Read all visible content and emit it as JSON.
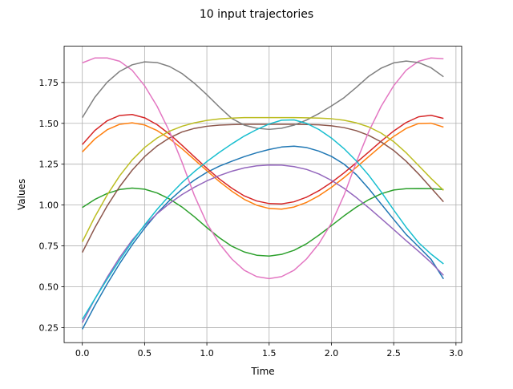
{
  "chart_data": {
    "type": "line",
    "title": "10 input trajectories",
    "xlabel": "Time",
    "ylabel": "Values",
    "xlim": [
      -0.146,
      3.046
    ],
    "ylim": [
      0.158,
      1.972
    ],
    "xticks": [
      0.0,
      0.5,
      1.0,
      1.5,
      2.0,
      2.5,
      3.0
    ],
    "xtick_labels": [
      "0.0",
      "0.5",
      "1.0",
      "1.5",
      "2.0",
      "2.5",
      "3.0"
    ],
    "yticks": [
      0.25,
      0.5,
      0.75,
      1.0,
      1.25,
      1.5,
      1.75
    ],
    "ytick_labels": [
      "0.25",
      "0.50",
      "0.75",
      "1.00",
      "1.25",
      "1.50",
      "1.75"
    ],
    "grid": true,
    "x": [
      0.0,
      0.1,
      0.2,
      0.3,
      0.4,
      0.5,
      0.6,
      0.7,
      0.8,
      0.9,
      1.0,
      1.1,
      1.2,
      1.3,
      1.4,
      1.5,
      1.6,
      1.7,
      1.8,
      1.9,
      2.0,
      2.1,
      2.2,
      2.3,
      2.4,
      2.5,
      2.6,
      2.7,
      2.8,
      2.9
    ],
    "series": [
      {
        "color": "#1f77b4",
        "values": [
          0.24,
          0.384,
          0.518,
          0.642,
          0.756,
          0.858,
          0.949,
          1.028,
          1.096,
          1.153,
          1.2,
          1.238,
          1.268,
          1.296,
          1.32,
          1.34,
          1.355,
          1.36,
          1.352,
          1.33,
          1.298,
          1.251,
          1.186,
          1.1,
          1.006,
          0.912,
          0.82,
          0.745,
          0.668,
          0.548
        ]
      },
      {
        "color": "#ff7f0e",
        "values": [
          1.325,
          1.404,
          1.461,
          1.494,
          1.503,
          1.49,
          1.456,
          1.406,
          1.345,
          1.278,
          1.21,
          1.144,
          1.085,
          1.035,
          0.999,
          0.979,
          0.975,
          0.988,
          1.016,
          1.057,
          1.108,
          1.167,
          1.231,
          1.297,
          1.362,
          1.42,
          1.469,
          1.499,
          1.501,
          1.477
        ]
      },
      {
        "color": "#2ca02c",
        "values": [
          0.985,
          1.034,
          1.071,
          1.095,
          1.104,
          1.097,
          1.074,
          1.037,
          0.988,
          0.928,
          0.862,
          0.8,
          0.748,
          0.713,
          0.693,
          0.688,
          0.698,
          0.723,
          0.763,
          0.816,
          0.874,
          0.933,
          0.987,
          1.033,
          1.069,
          1.092,
          1.1,
          1.101,
          1.1,
          1.095
        ]
      },
      {
        "color": "#d62728",
        "values": [
          1.37,
          1.456,
          1.516,
          1.548,
          1.554,
          1.534,
          1.492,
          1.434,
          1.366,
          1.295,
          1.225,
          1.16,
          1.103,
          1.056,
          1.025,
          1.009,
          1.007,
          1.02,
          1.048,
          1.088,
          1.138,
          1.196,
          1.259,
          1.325,
          1.391,
          1.453,
          1.505,
          1.54,
          1.549,
          1.53
        ]
      },
      {
        "color": "#9467bd",
        "values": [
          0.28,
          0.424,
          0.558,
          0.679,
          0.785,
          0.873,
          0.947,
          1.01,
          1.064,
          1.109,
          1.148,
          1.18,
          1.207,
          1.227,
          1.24,
          1.245,
          1.244,
          1.235,
          1.218,
          1.19,
          1.151,
          1.103,
          1.046,
          0.983,
          0.917,
          0.85,
          0.782,
          0.717,
          0.648,
          0.57
        ]
      },
      {
        "color": "#8c564b",
        "values": [
          0.71,
          0.86,
          0.995,
          1.113,
          1.213,
          1.296,
          1.361,
          1.411,
          1.447,
          1.469,
          1.482,
          1.489,
          1.492,
          1.494,
          1.494,
          1.494,
          1.494,
          1.494,
          1.493,
          1.491,
          1.485,
          1.474,
          1.455,
          1.426,
          1.386,
          1.334,
          1.268,
          1.19,
          1.105,
          1.02
        ]
      },
      {
        "color": "#e377c2",
        "values": [
          1.87,
          1.9,
          1.9,
          1.88,
          1.825,
          1.73,
          1.605,
          1.45,
          1.263,
          1.058,
          0.889,
          0.764,
          0.67,
          0.601,
          0.562,
          0.55,
          0.562,
          0.601,
          0.67,
          0.764,
          0.889,
          1.058,
          1.263,
          1.45,
          1.605,
          1.73,
          1.825,
          1.88,
          1.9,
          1.895
        ]
      },
      {
        "color": "#7f7f7f",
        "values": [
          1.535,
          1.659,
          1.752,
          1.818,
          1.858,
          1.876,
          1.872,
          1.848,
          1.805,
          1.745,
          1.675,
          1.6,
          1.53,
          1.489,
          1.47,
          1.463,
          1.47,
          1.489,
          1.52,
          1.56,
          1.606,
          1.656,
          1.72,
          1.788,
          1.838,
          1.87,
          1.881,
          1.872,
          1.84,
          1.785
        ]
      },
      {
        "color": "#bcbd22",
        "values": [
          0.775,
          0.927,
          1.062,
          1.179,
          1.276,
          1.352,
          1.41,
          1.452,
          1.482,
          1.503,
          1.518,
          1.527,
          1.532,
          1.535,
          1.535,
          1.535,
          1.535,
          1.535,
          1.534,
          1.532,
          1.528,
          1.519,
          1.503,
          1.478,
          1.44,
          1.388,
          1.32,
          1.242,
          1.163,
          1.09
        ]
      },
      {
        "color": "#17becf",
        "values": [
          0.3,
          0.425,
          0.547,
          0.664,
          0.775,
          0.878,
          0.973,
          1.059,
          1.137,
          1.205,
          1.266,
          1.322,
          1.374,
          1.422,
          1.462,
          1.496,
          1.519,
          1.521,
          1.5,
          1.462,
          1.41,
          1.346,
          1.27,
          1.182,
          1.08,
          0.97,
          0.864,
          0.77,
          0.7,
          0.64
        ]
      }
    ]
  }
}
